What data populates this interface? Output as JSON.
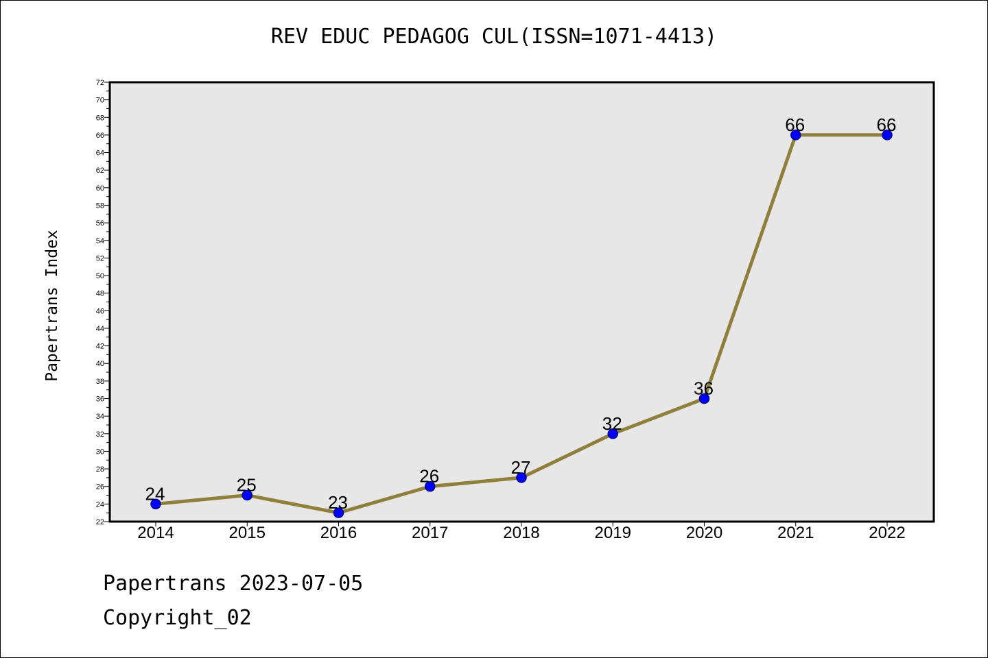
{
  "chart_data": {
    "type": "line",
    "title": "REV EDUC PEDAGOG CUL(ISSN=1071-4413)",
    "xlabel": "",
    "ylabel": "Papertrans Index",
    "categories": [
      "2014",
      "2015",
      "2016",
      "2017",
      "2018",
      "2019",
      "2020",
      "2021",
      "2022"
    ],
    "series": [
      {
        "values": [
          24,
          25,
          23,
          26,
          27,
          32,
          36,
          66,
          66
        ]
      }
    ],
    "ylim": [
      22,
      72
    ],
    "yticks": [
      22,
      24,
      26,
      28,
      30,
      32,
      34,
      36,
      38,
      40,
      42,
      44,
      46,
      48,
      50,
      52,
      54,
      56,
      58,
      60,
      62,
      64,
      66,
      68,
      70,
      72
    ],
    "grid": false,
    "colors": {
      "plot_background": "#e7e7e7",
      "line": "#8f7f3a",
      "marker_fill": "#0000ff",
      "marker_stroke": "#00008b"
    }
  },
  "footer": {
    "line1": "Papertrans 2023-07-05",
    "line2": "Copyright_02"
  }
}
